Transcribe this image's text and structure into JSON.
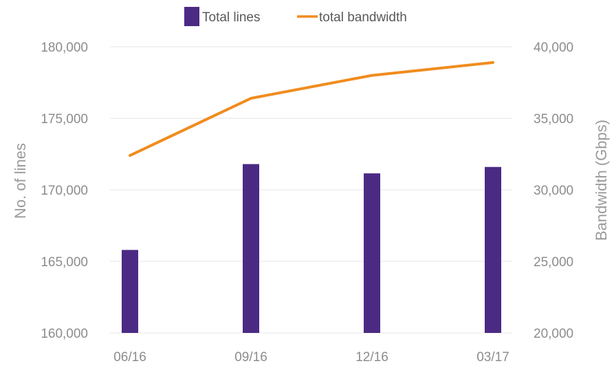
{
  "chart_data": {
    "type": "bar",
    "categories": [
      "06/16",
      "09/16",
      "12/16",
      "03/17"
    ],
    "series": [
      {
        "name": "Total lines",
        "type": "bar",
        "axis": "left",
        "color": "#4b2a84",
        "values": [
          165800,
          171800,
          171150,
          171600
        ]
      },
      {
        "name": "total bandwidth",
        "type": "line",
        "axis": "right",
        "color": "#f08c1e",
        "values": [
          32400,
          36400,
          38000,
          38900
        ]
      }
    ],
    "y_left": {
      "label": "No. of lines",
      "lim": [
        160000,
        180000
      ],
      "ticks": [
        "160,000",
        "165,000",
        "170,000",
        "175,000",
        "180,000"
      ]
    },
    "y_right": {
      "label": "Bandwidth (Gbps)",
      "lim": [
        20000,
        40000
      ],
      "ticks": [
        "20,000",
        "25,000",
        "30,000",
        "35,000",
        "40,000"
      ]
    },
    "grid": true,
    "legend": "top-center"
  }
}
